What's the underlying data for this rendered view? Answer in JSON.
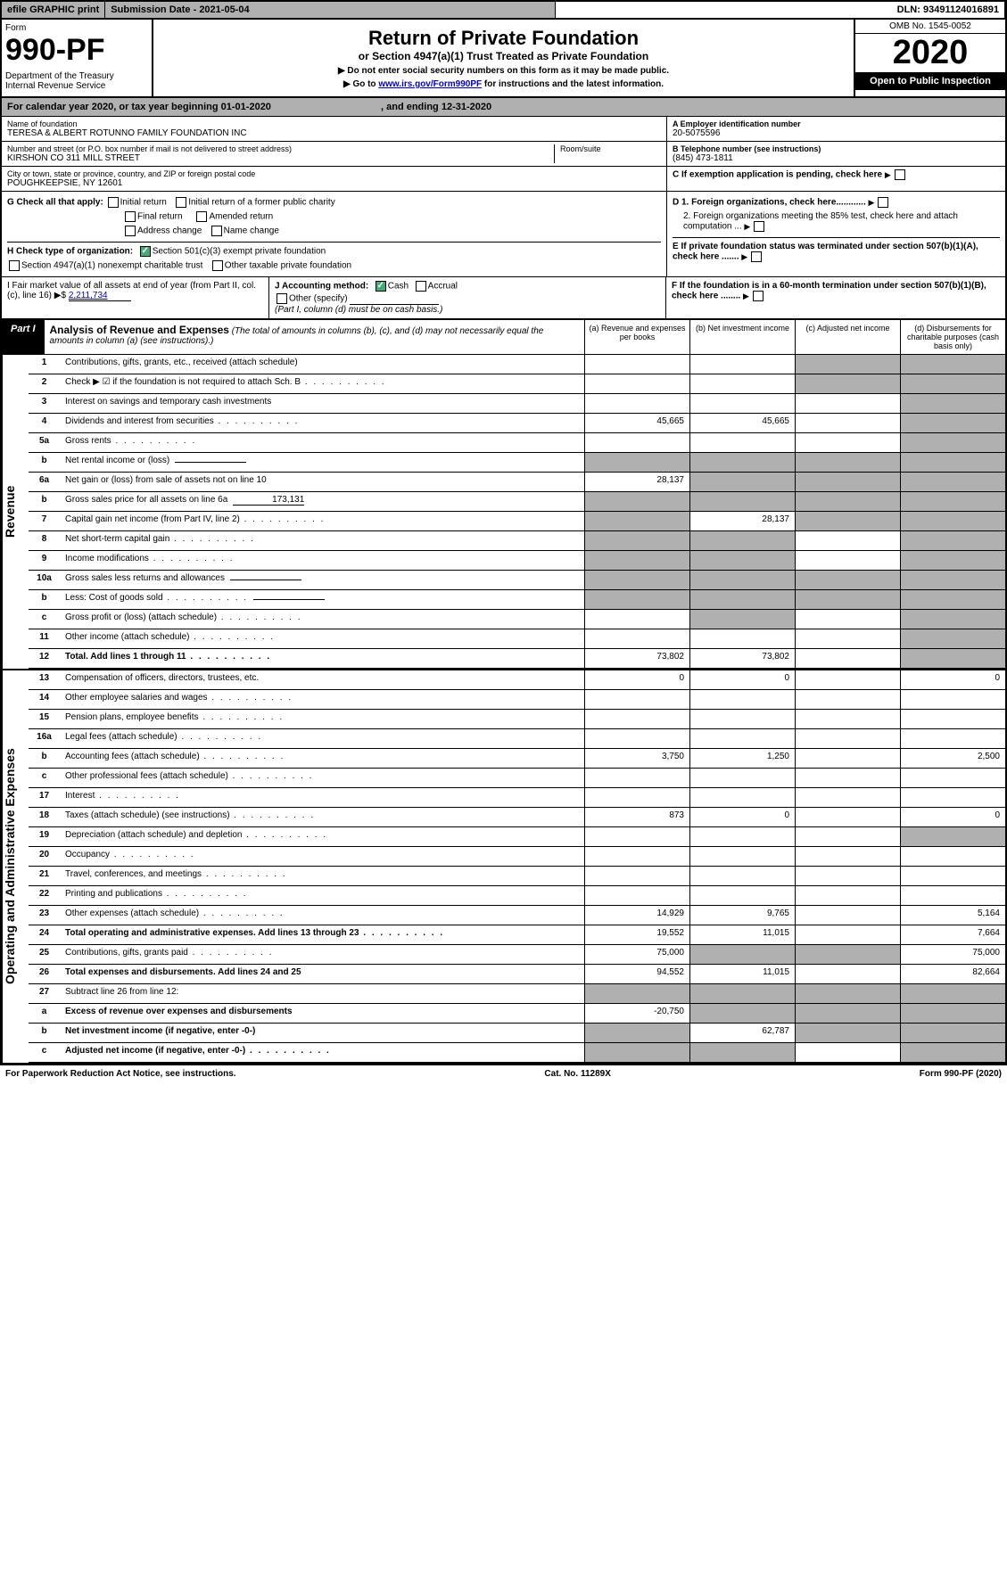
{
  "topbar": {
    "efile": "efile GRAPHIC print",
    "subdate": "Submission Date - 2021-05-04",
    "dln": "DLN: 93491124016891"
  },
  "header": {
    "form_label": "Form",
    "form_no": "990-PF",
    "dept": "Department of the Treasury\nInternal Revenue Service",
    "title": "Return of Private Foundation",
    "subtitle": "or Section 4947(a)(1) Trust Treated as Private Foundation",
    "note1": "▶ Do not enter social security numbers on this form as it may be made public.",
    "note2_pre": "▶ Go to ",
    "note2_link": "www.irs.gov/Form990PF",
    "note2_post": " for instructions and the latest information.",
    "omb": "OMB No. 1545-0052",
    "year": "2020",
    "open": "Open to Public Inspection"
  },
  "cal_year": {
    "pre": "For calendar year 2020, or tax year beginning ",
    "begin": "01-01-2020",
    "mid": " , and ending ",
    "end": "12-31-2020"
  },
  "entity": {
    "name_label": "Name of foundation",
    "name": "TERESA & ALBERT ROTUNNO FAMILY FOUNDATION INC",
    "addr_label": "Number and street (or P.O. box number if mail is not delivered to street address)",
    "addr": "KIRSHON CO 311 MILL STREET",
    "room_label": "Room/suite",
    "city_label": "City or town, state or province, country, and ZIP or foreign postal code",
    "city": "POUGHKEEPSIE, NY  12601",
    "ein_label": "A Employer identification number",
    "ein": "20-5075596",
    "phone_label": "B Telephone number (see instructions)",
    "phone": "(845) 473-1811",
    "c_label": "C If exemption application is pending, check here"
  },
  "g": {
    "label": "G Check all that apply:",
    "initial": "Initial return",
    "initial_former": "Initial return of a former public charity",
    "final": "Final return",
    "amended": "Amended return",
    "addr_change": "Address change",
    "name_change": "Name change"
  },
  "h": {
    "label": "H Check type of organization:",
    "s501": "Section 501(c)(3) exempt private foundation",
    "s4947": "Section 4947(a)(1) nonexempt charitable trust",
    "other": "Other taxable private foundation"
  },
  "d": {
    "d1": "D 1. Foreign organizations, check here............",
    "d2": "2. Foreign organizations meeting the 85% test, check here and attach computation ..."
  },
  "e": "E  If private foundation status was terminated under section 507(b)(1)(A), check here .......",
  "f": "F  If the foundation is in a 60-month termination under section 507(b)(1)(B), check here ........",
  "i": {
    "label": "I Fair market value of all assets at end of year (from Part II, col. (c), line 16) ▶$ ",
    "val": "2,211,734"
  },
  "j": {
    "label": "J Accounting method:",
    "cash": "Cash",
    "accrual": "Accrual",
    "other": "Other (specify)",
    "note": "(Part I, column (d) must be on cash basis.)"
  },
  "part1": {
    "label": "Part I",
    "title": "Analysis of Revenue and Expenses",
    "sub": "(The total of amounts in columns (b), (c), and (d) may not necessarily equal the amounts in column (a) (see instructions).)",
    "col_a": "(a) Revenue and expenses per books",
    "col_b": "(b) Net investment income",
    "col_c": "(c) Adjusted net income",
    "col_d": "(d) Disbursements for charitable purposes (cash basis only)"
  },
  "rows": [
    {
      "n": "1",
      "d": "Contributions, gifts, grants, etc., received (attach schedule)",
      "a": "",
      "b": "",
      "c": "g",
      "dd": "g"
    },
    {
      "n": "2",
      "d": "Check ▶ ☑ if the foundation is not required to attach Sch. B",
      "dots": true,
      "a": "",
      "b": "",
      "c": "g",
      "dd": "g"
    },
    {
      "n": "3",
      "d": "Interest on savings and temporary cash investments",
      "a": "",
      "b": "",
      "c": "",
      "dd": "g"
    },
    {
      "n": "4",
      "d": "Dividends and interest from securities",
      "dots": true,
      "a": "45,665",
      "b": "45,665",
      "c": "",
      "dd": "g"
    },
    {
      "n": "5a",
      "d": "Gross rents",
      "dots": true,
      "a": "",
      "b": "",
      "c": "",
      "dd": "g"
    },
    {
      "n": "b",
      "d": "Net rental income or (loss)",
      "inline": true,
      "a": "g",
      "b": "g",
      "c": "g",
      "dd": "g"
    },
    {
      "n": "6a",
      "d": "Net gain or (loss) from sale of assets not on line 10",
      "a": "28,137",
      "b": "g",
      "c": "g",
      "dd": "g"
    },
    {
      "n": "b",
      "d": "Gross sales price for all assets on line 6a",
      "inline": true,
      "inline_val": "173,131",
      "a": "g",
      "b": "g",
      "c": "g",
      "dd": "g"
    },
    {
      "n": "7",
      "d": "Capital gain net income (from Part IV, line 2)",
      "dots": true,
      "a": "g",
      "b": "28,137",
      "c": "g",
      "dd": "g"
    },
    {
      "n": "8",
      "d": "Net short-term capital gain",
      "dots": true,
      "a": "g",
      "b": "g",
      "c": "",
      "dd": "g"
    },
    {
      "n": "9",
      "d": "Income modifications",
      "dots": true,
      "a": "g",
      "b": "g",
      "c": "",
      "dd": "g"
    },
    {
      "n": "10a",
      "d": "Gross sales less returns and allowances",
      "inline": true,
      "a": "g",
      "b": "g",
      "c": "g",
      "dd": "g"
    },
    {
      "n": "b",
      "d": "Less: Cost of goods sold",
      "dots": true,
      "inline": true,
      "a": "g",
      "b": "g",
      "c": "g",
      "dd": "g"
    },
    {
      "n": "c",
      "d": "Gross profit or (loss) (attach schedule)",
      "dots": true,
      "a": "",
      "b": "g",
      "c": "",
      "dd": "g"
    },
    {
      "n": "11",
      "d": "Other income (attach schedule)",
      "dots": true,
      "a": "",
      "b": "",
      "c": "",
      "dd": "g"
    },
    {
      "n": "12",
      "d": "Total. Add lines 1 through 11",
      "dots": true,
      "bold": true,
      "a": "73,802",
      "b": "73,802",
      "c": "",
      "dd": "g"
    }
  ],
  "exp_rows": [
    {
      "n": "13",
      "d": "Compensation of officers, directors, trustees, etc.",
      "a": "0",
      "b": "0",
      "c": "",
      "dd": "0"
    },
    {
      "n": "14",
      "d": "Other employee salaries and wages",
      "dots": true,
      "a": "",
      "b": "",
      "c": "",
      "dd": ""
    },
    {
      "n": "15",
      "d": "Pension plans, employee benefits",
      "dots": true,
      "a": "",
      "b": "",
      "c": "",
      "dd": ""
    },
    {
      "n": "16a",
      "d": "Legal fees (attach schedule)",
      "dots": true,
      "a": "",
      "b": "",
      "c": "",
      "dd": ""
    },
    {
      "n": "b",
      "d": "Accounting fees (attach schedule)",
      "dots": true,
      "a": "3,750",
      "b": "1,250",
      "c": "",
      "dd": "2,500"
    },
    {
      "n": "c",
      "d": "Other professional fees (attach schedule)",
      "dots": true,
      "a": "",
      "b": "",
      "c": "",
      "dd": ""
    },
    {
      "n": "17",
      "d": "Interest",
      "dots": true,
      "a": "",
      "b": "",
      "c": "",
      "dd": ""
    },
    {
      "n": "18",
      "d": "Taxes (attach schedule) (see instructions)",
      "dots": true,
      "a": "873",
      "b": "0",
      "c": "",
      "dd": "0"
    },
    {
      "n": "19",
      "d": "Depreciation (attach schedule) and depletion",
      "dots": true,
      "a": "",
      "b": "",
      "c": "",
      "dd": "g"
    },
    {
      "n": "20",
      "d": "Occupancy",
      "dots": true,
      "a": "",
      "b": "",
      "c": "",
      "dd": ""
    },
    {
      "n": "21",
      "d": "Travel, conferences, and meetings",
      "dots": true,
      "a": "",
      "b": "",
      "c": "",
      "dd": ""
    },
    {
      "n": "22",
      "d": "Printing and publications",
      "dots": true,
      "a": "",
      "b": "",
      "c": "",
      "dd": ""
    },
    {
      "n": "23",
      "d": "Other expenses (attach schedule)",
      "dots": true,
      "a": "14,929",
      "b": "9,765",
      "c": "",
      "dd": "5,164"
    },
    {
      "n": "24",
      "d": "Total operating and administrative expenses. Add lines 13 through 23",
      "dots": true,
      "bold": true,
      "a": "19,552",
      "b": "11,015",
      "c": "",
      "dd": "7,664"
    },
    {
      "n": "25",
      "d": "Contributions, gifts, grants paid",
      "dots": true,
      "a": "75,000",
      "b": "g",
      "c": "g",
      "dd": "75,000"
    },
    {
      "n": "26",
      "d": "Total expenses and disbursements. Add lines 24 and 25",
      "bold": true,
      "a": "94,552",
      "b": "11,015",
      "c": "",
      "dd": "82,664"
    },
    {
      "n": "27",
      "d": "Subtract line 26 from line 12:",
      "a": "g",
      "b": "g",
      "c": "g",
      "dd": "g"
    },
    {
      "n": "a",
      "d": "Excess of revenue over expenses and disbursements",
      "bold": true,
      "a": "-20,750",
      "b": "g",
      "c": "g",
      "dd": "g"
    },
    {
      "n": "b",
      "d": "Net investment income (if negative, enter -0-)",
      "bold": true,
      "a": "g",
      "b": "62,787",
      "c": "g",
      "dd": "g"
    },
    {
      "n": "c",
      "d": "Adjusted net income (if negative, enter -0-)",
      "dots": true,
      "bold": true,
      "a": "g",
      "b": "g",
      "c": "",
      "dd": "g"
    }
  ],
  "side_labels": {
    "rev": "Revenue",
    "exp": "Operating and Administrative Expenses"
  },
  "footer": {
    "left": "For Paperwork Reduction Act Notice, see instructions.",
    "mid": "Cat. No. 11289X",
    "right": "Form 990-PF (2020)"
  }
}
